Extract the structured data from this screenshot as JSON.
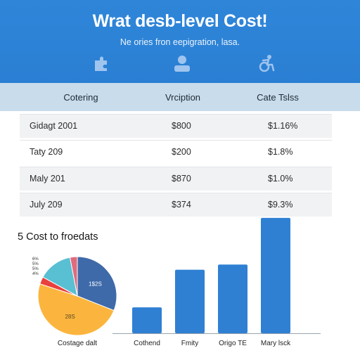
{
  "header": {
    "title": "Wrat desb-level Cost!",
    "subtitle": "Ne ories fron eepigration, lasa.",
    "icons": [
      "puzzle-icon",
      "user-icon",
      "accessibility-icon"
    ]
  },
  "table": {
    "columns": [
      "Cotering",
      "Vrciption",
      "Cate Tslss"
    ],
    "rows": [
      [
        "Gidagt 2001",
        "$800",
        "$1.16%"
      ],
      [
        "Taty 209",
        "$200",
        "$1.8%"
      ],
      [
        "Maly 201",
        "$870",
        "$1.0%"
      ],
      [
        "July 209",
        "$374",
        "$9.3%"
      ]
    ]
  },
  "section_title": "5 Cost to froedats",
  "chart_data": [
    {
      "type": "pie",
      "title": "",
      "caption": "Costage dalt",
      "slices": [
        {
          "label": "1$2S",
          "value": 31,
          "color": "#3f6aa9"
        },
        {
          "label": "28S",
          "value": 49,
          "color": "#fbb53e"
        },
        {
          "label": "",
          "value": 3,
          "color": "#e8413d"
        },
        {
          "label": "",
          "value": 14,
          "color": "#59bfd2"
        },
        {
          "label": "",
          "value": 3,
          "color": "#e06b7e"
        }
      ],
      "tick_labels": [
        "6%",
        "5%",
        "5%",
        "4%"
      ]
    },
    {
      "type": "bar",
      "title": "",
      "categories": [
        "Cothend",
        "Fmity",
        "Origo TE",
        "Mary lsck"
      ],
      "values": [
        20,
        49,
        53,
        89
      ],
      "ylim": [
        0,
        90
      ],
      "color": "#2f80d3",
      "grid": false
    }
  ]
}
